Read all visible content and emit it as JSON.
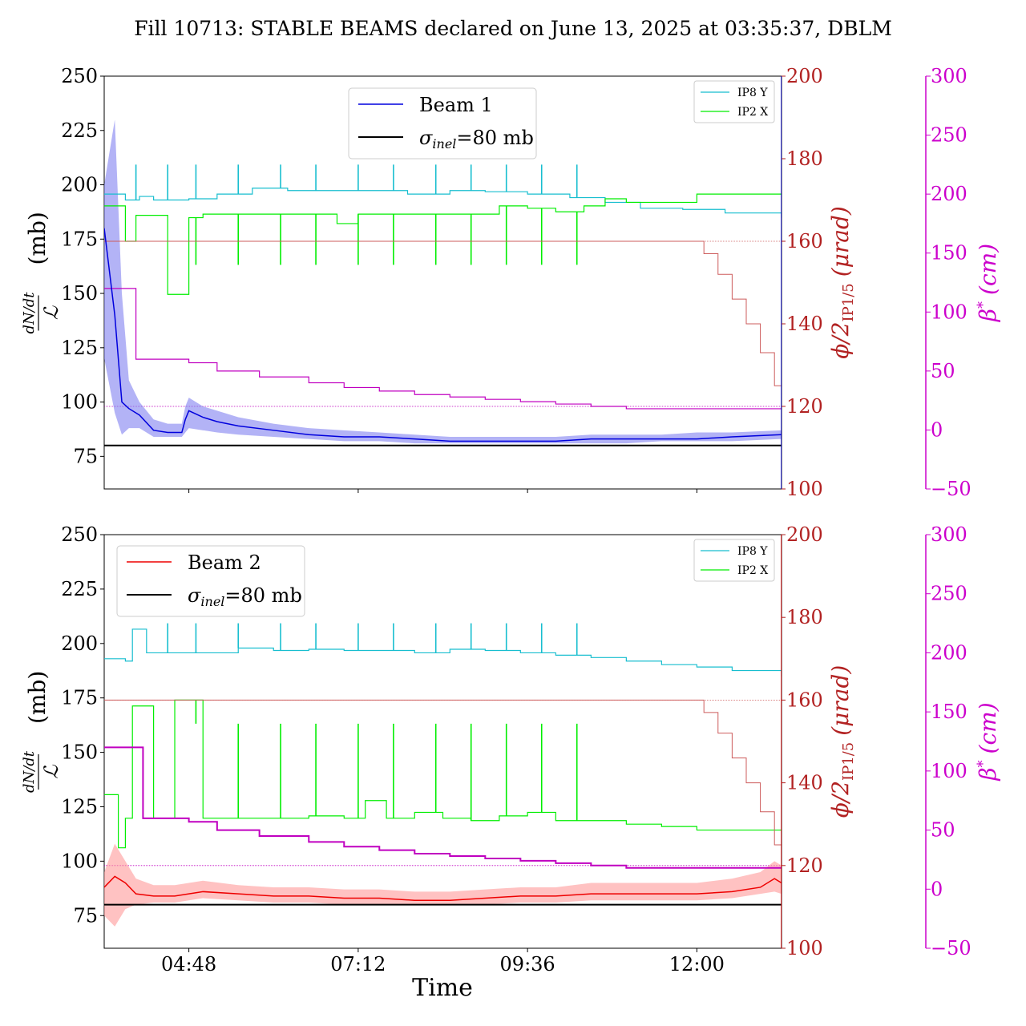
{
  "title": "Fill 10713: STABLE BEAMS declared on June 13, 2025 at 03:35:37, DBLM",
  "x_axis": {
    "label": "Time",
    "range_hours": [
      3.6,
      13.2
    ],
    "ticks": [
      {
        "h": 4.8,
        "label": "04:48"
      },
      {
        "h": 7.2,
        "label": "07:12"
      },
      {
        "h": 9.6,
        "label": "09:36"
      },
      {
        "h": 12.0,
        "label": "12:00"
      }
    ]
  },
  "left_axis": {
    "label_main": "(mb)",
    "label_num": "dN/dt",
    "label_den": "ℒ",
    "range": [
      60,
      250
    ],
    "ticks": [
      75,
      100,
      125,
      150,
      175,
      200,
      225,
      250
    ]
  },
  "right_axis": {
    "label_main": "ϕ/2",
    "label_sub": "IP1/5",
    "label_unit": "(μrad)",
    "range": [
      100,
      200
    ],
    "ticks": [
      100,
      120,
      140,
      160,
      180,
      200
    ],
    "color": "#b22222"
  },
  "beta_axis": {
    "label_main": "β",
    "label_sup": "*",
    "label_unit": "(cm)",
    "range": [
      -50,
      300
    ],
    "ticks": [
      -50,
      0,
      50,
      100,
      150,
      200,
      250,
      300
    ],
    "color": "#cc00cc"
  },
  "colors": {
    "beam1": "#0000dd",
    "beam1_band": "#8080f0",
    "beam2": "#ee0000",
    "beam2_band": "#ff9a9a",
    "ip8y": "#17becf",
    "ip2x": "#00ee00",
    "crossing": "#cd5c5c",
    "beta": "#c000c0",
    "sigma": "#000000"
  },
  "legend_main_top": {
    "beam": "Beam 1",
    "sigma_sym": "σ",
    "sigma_sub": "inel",
    "sigma_val": "=80 mb"
  },
  "legend_main_bottom": {
    "beam": "Beam 2",
    "sigma_sym": "σ",
    "sigma_sub": "inel",
    "sigma_val": "=80 mb"
  },
  "legend_small": {
    "ip8": "IP8 Y",
    "ip2": "IP2 X"
  },
  "chart_data": [
    {
      "type": "line",
      "panel": "top",
      "sigma_inel_mb": 80,
      "end_marker_hour": 13.2,
      "series": [
        {
          "name": "Beam 1",
          "axis": "left",
          "x": [
            3.6,
            3.75,
            3.85,
            3.95,
            4.1,
            4.3,
            4.5,
            4.7,
            4.75,
            4.8,
            5.0,
            5.2,
            5.5,
            6.0,
            6.5,
            7.0,
            7.5,
            8.0,
            8.5,
            9.0,
            9.5,
            10.0,
            10.5,
            11.0,
            11.5,
            12.0,
            12.5,
            13.2
          ],
          "y": [
            180,
            140,
            100,
            97,
            94,
            87,
            86,
            86,
            92,
            96,
            93,
            91,
            89,
            87,
            85,
            84,
            84,
            83,
            82,
            82,
            82,
            82,
            83,
            83,
            83,
            83,
            84,
            85
          ],
          "band": [
            [
              200,
              120
            ],
            [
              230,
              95
            ],
            [
              150,
              85
            ],
            [
              110,
              88
            ],
            [
              100,
              88
            ],
            [
              92,
              84
            ],
            [
              90,
              84
            ],
            [
              90,
              84
            ],
            [
              98,
              86
            ],
            [
              102,
              88
            ],
            [
              98,
              87
            ],
            [
              96,
              86
            ],
            [
              93,
              85
            ],
            [
              90,
              84
            ],
            [
              88,
              83
            ],
            [
              87,
              82
            ],
            [
              86,
              82
            ],
            [
              85,
              81
            ],
            [
              84,
              81
            ],
            [
              84,
              81
            ],
            [
              84,
              81
            ],
            [
              84,
              81
            ],
            [
              85,
              81
            ],
            [
              85,
              81
            ],
            [
              85,
              82
            ],
            [
              86,
              82
            ],
            [
              86,
              82
            ],
            [
              87,
              83
            ]
          ]
        },
        {
          "name": "IP8 Y",
          "axis": "beta",
          "x": [
            3.6,
            3.9,
            4.1,
            4.3,
            4.8,
            5.2,
            5.7,
            6.2,
            6.8,
            7.4,
            7.9,
            8.5,
            9.0,
            9.6,
            10.2,
            10.7,
            11.2,
            11.8,
            12.4,
            13.2
          ],
          "y": [
            200,
            195,
            198,
            195,
            196,
            200,
            205,
            203,
            203,
            203,
            200,
            203,
            202,
            200,
            197,
            193,
            188,
            187,
            184,
            180
          ],
          "spikes": [
            {
              "x": 4.05,
              "y": 225
            },
            {
              "x": 4.5,
              "y": 225
            },
            {
              "x": 4.9,
              "y": 225
            },
            {
              "x": 5.5,
              "y": 225
            },
            {
              "x": 6.1,
              "y": 225
            },
            {
              "x": 6.6,
              "y": 225
            },
            {
              "x": 7.2,
              "y": 225
            },
            {
              "x": 7.7,
              "y": 225
            },
            {
              "x": 8.3,
              "y": 225
            },
            {
              "x": 8.8,
              "y": 225
            },
            {
              "x": 9.3,
              "y": 225
            },
            {
              "x": 9.8,
              "y": 225
            },
            {
              "x": 10.3,
              "y": 225
            }
          ]
        },
        {
          "name": "IP2 X",
          "axis": "beta",
          "x": [
            3.6,
            3.9,
            4.05,
            4.3,
            4.5,
            4.5,
            4.8,
            4.8,
            5.0,
            5.6,
            6.2,
            6.7,
            6.9,
            7.2,
            7.6,
            8.0,
            8.4,
            8.8,
            9.2,
            9.6,
            10.0,
            10.4,
            10.7,
            11.0,
            11.5,
            12.0,
            12.5,
            13.2
          ],
          "y": [
            190,
            160,
            182,
            182,
            115,
            115,
            115,
            180,
            183,
            183,
            183,
            183,
            175,
            183,
            183,
            183,
            183,
            183,
            190,
            188,
            185,
            190,
            196,
            193,
            193,
            200,
            200,
            200
          ],
          "spikes": [
            {
              "x": 4.9,
              "y": 140
            },
            {
              "x": 5.5,
              "y": 140
            },
            {
              "x": 6.1,
              "y": 140
            },
            {
              "x": 6.6,
              "y": 140
            },
            {
              "x": 7.2,
              "y": 140
            },
            {
              "x": 7.7,
              "y": 140
            },
            {
              "x": 8.3,
              "y": 140
            },
            {
              "x": 8.8,
              "y": 140
            },
            {
              "x": 9.3,
              "y": 140
            },
            {
              "x": 9.8,
              "y": 140
            },
            {
              "x": 10.3,
              "y": 140
            }
          ]
        },
        {
          "name": "crossing angle",
          "axis": "right",
          "x": [
            3.6,
            12.0,
            12.1,
            12.3,
            12.5,
            12.7,
            12.9,
            13.1,
            13.2
          ],
          "y": [
            160,
            160,
            157,
            152,
            146,
            140,
            133,
            125,
            119
          ]
        },
        {
          "name": "beta*",
          "axis": "beta",
          "x": [
            3.6,
            4.0,
            4.05,
            4.5,
            4.8,
            5.2,
            5.8,
            6.5,
            7.0,
            7.5,
            8.0,
            8.5,
            9.0,
            9.5,
            10.0,
            10.5,
            11.0,
            13.2
          ],
          "y": [
            120,
            120,
            60,
            60,
            57,
            50,
            45,
            40,
            36,
            33,
            30,
            28,
            26,
            24,
            22,
            20,
            18,
            18
          ]
        }
      ]
    },
    {
      "type": "line",
      "panel": "bottom",
      "sigma_inel_mb": 80,
      "end_marker_hour": 13.2,
      "series": [
        {
          "name": "Beam 2",
          "axis": "left",
          "x": [
            3.6,
            3.75,
            3.9,
            4.05,
            4.3,
            4.6,
            4.8,
            5.0,
            5.5,
            6.0,
            6.5,
            7.0,
            7.5,
            8.0,
            8.5,
            9.0,
            9.5,
            10.0,
            10.5,
            11.0,
            11.5,
            12.0,
            12.5,
            12.9,
            13.1,
            13.2
          ],
          "y": [
            88,
            93,
            90,
            85,
            84,
            84,
            85,
            86,
            85,
            84,
            84,
            83,
            83,
            82,
            82,
            83,
            84,
            84,
            85,
            85,
            85,
            85,
            86,
            88,
            92,
            90
          ],
          "band": [
            [
              95,
              75
            ],
            [
              108,
              70
            ],
            [
              100,
              78
            ],
            [
              92,
              80
            ],
            [
              89,
              81
            ],
            [
              89,
              81
            ],
            [
              90,
              82
            ],
            [
              91,
              83
            ],
            [
              89,
              82
            ],
            [
              88,
              81
            ],
            [
              88,
              81
            ],
            [
              87,
              80
            ],
            [
              87,
              80
            ],
            [
              86,
              80
            ],
            [
              86,
              80
            ],
            [
              87,
              80
            ],
            [
              88,
              81
            ],
            [
              88,
              81
            ],
            [
              90,
              82
            ],
            [
              90,
              82
            ],
            [
              90,
              82
            ],
            [
              90,
              82
            ],
            [
              92,
              83
            ],
            [
              95,
              85
            ],
            [
              100,
              86
            ],
            [
              98,
              85
            ]
          ]
        },
        {
          "name": "IP8 Y",
          "axis": "beta",
          "x": [
            3.6,
            3.9,
            4.0,
            4.2,
            4.5,
            5.0,
            5.5,
            6.0,
            6.5,
            7.0,
            7.5,
            8.0,
            8.5,
            9.0,
            9.5,
            10.0,
            10.5,
            11.0,
            11.5,
            12.0,
            12.5,
            13.2
          ],
          "y": [
            195,
            193,
            220,
            200,
            200,
            200,
            204,
            202,
            203,
            202,
            202,
            200,
            203,
            202,
            200,
            198,
            196,
            193,
            190,
            188,
            185,
            180
          ],
          "spikes": [
            {
              "x": 4.5,
              "y": 225
            },
            {
              "x": 4.9,
              "y": 225
            },
            {
              "x": 5.5,
              "y": 225
            },
            {
              "x": 6.1,
              "y": 225
            },
            {
              "x": 6.6,
              "y": 225
            },
            {
              "x": 7.2,
              "y": 225
            },
            {
              "x": 7.7,
              "y": 225
            },
            {
              "x": 8.3,
              "y": 225
            },
            {
              "x": 8.8,
              "y": 225
            },
            {
              "x": 9.3,
              "y": 225
            },
            {
              "x": 9.8,
              "y": 225
            },
            {
              "x": 10.3,
              "y": 225
            }
          ]
        },
        {
          "name": "IP2 X",
          "axis": "beta",
          "x": [
            3.6,
            3.8,
            3.9,
            4.0,
            4.1,
            4.3,
            4.5,
            4.6,
            4.8,
            5.0,
            5.5,
            6.0,
            6.5,
            7.0,
            7.3,
            7.6,
            8.0,
            8.4,
            8.8,
            9.2,
            9.6,
            10.0,
            10.5,
            11.0,
            11.5,
            12.0,
            12.5,
            13.2
          ],
          "y": [
            80,
            35,
            60,
            155,
            155,
            60,
            60,
            160,
            160,
            60,
            60,
            60,
            62,
            60,
            75,
            60,
            65,
            60,
            58,
            62,
            65,
            58,
            58,
            55,
            53,
            50,
            50,
            50
          ],
          "spikes": [
            {
              "x": 4.9,
              "y": 140
            },
            {
              "x": 5.5,
              "y": 140
            },
            {
              "x": 6.1,
              "y": 140
            },
            {
              "x": 6.6,
              "y": 140
            },
            {
              "x": 7.2,
              "y": 140
            },
            {
              "x": 7.7,
              "y": 140
            },
            {
              "x": 8.3,
              "y": 140
            },
            {
              "x": 8.8,
              "y": 140
            },
            {
              "x": 9.3,
              "y": 140
            },
            {
              "x": 9.8,
              "y": 140
            },
            {
              "x": 10.3,
              "y": 140
            }
          ]
        },
        {
          "name": "crossing angle",
          "axis": "right",
          "x": [
            3.6,
            12.0,
            12.1,
            12.3,
            12.5,
            12.7,
            12.9,
            13.1,
            13.2
          ],
          "y": [
            160,
            160,
            157,
            152,
            146,
            140,
            133,
            125,
            119
          ]
        },
        {
          "name": "beta*",
          "axis": "beta",
          "x": [
            3.6,
            4.0,
            4.15,
            4.5,
            4.8,
            5.2,
            5.8,
            6.5,
            7.0,
            7.5,
            8.0,
            8.5,
            9.0,
            9.5,
            10.0,
            10.5,
            11.0,
            13.2
          ],
          "y": [
            120,
            120,
            60,
            60,
            57,
            50,
            45,
            40,
            36,
            33,
            30,
            28,
            26,
            24,
            22,
            20,
            18,
            18
          ]
        }
      ]
    }
  ]
}
